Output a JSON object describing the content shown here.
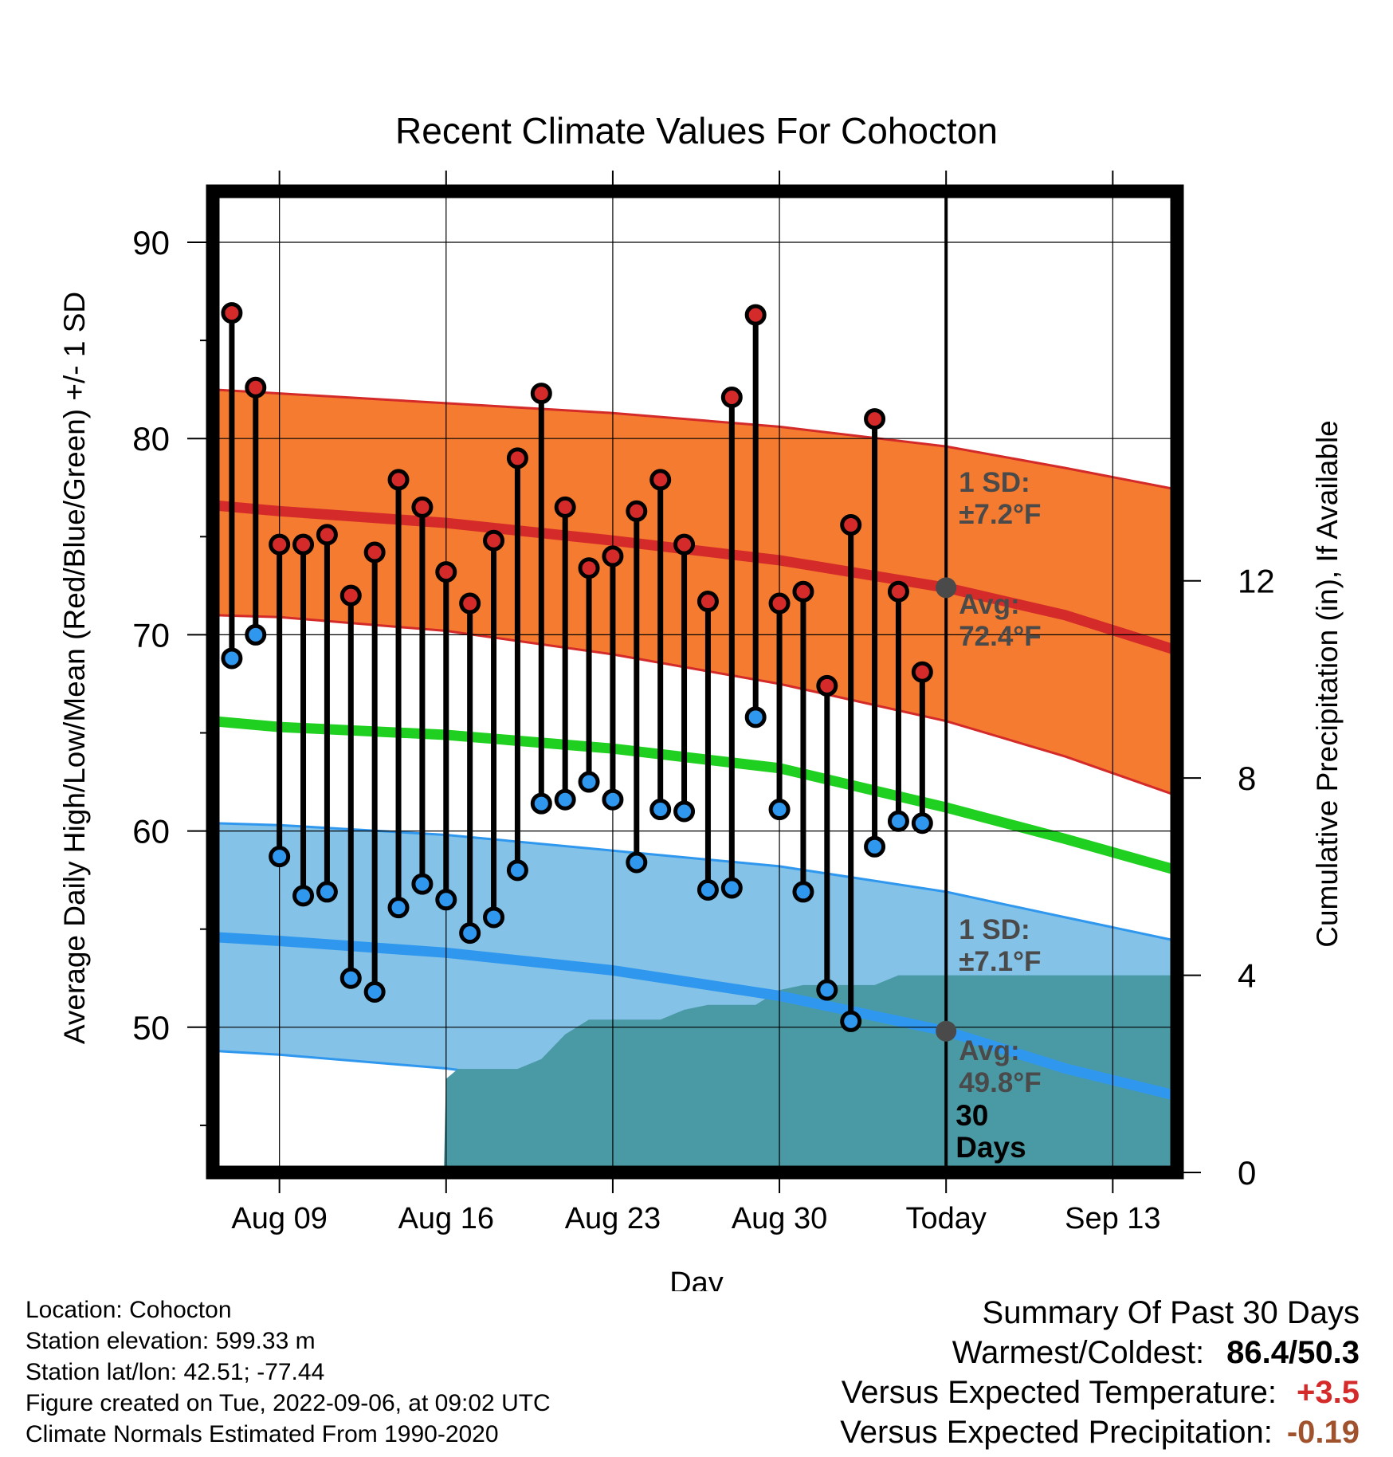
{
  "chart_data": {
    "type": "line",
    "title": "Recent Climate Values For Cohocton",
    "xlabel": "Day",
    "ylabel": "Average Daily High/Low/Mean (Red/Blue/Green) +/- 1 SD",
    "y2label": "Cumulative Precipitation (in), If Available",
    "ylim": [
      42.6,
      92.6
    ],
    "y2lim": [
      0,
      19.9
    ],
    "y_ticks": [
      90,
      80,
      70,
      60,
      50
    ],
    "y2_ticks": [
      12,
      8,
      4,
      0
    ],
    "x_ticks": [
      {
        "label": "Aug 09",
        "day": 9
      },
      {
        "label": "Aug 16",
        "day": 16
      },
      {
        "label": "Aug 23",
        "day": 23
      },
      {
        "label": "Aug 30",
        "day": 30
      },
      {
        "label": "Today",
        "day": 37
      },
      {
        "label": "Sep 13",
        "day": 44
      }
    ],
    "xlim": [
      6.2,
      46.7
    ],
    "today_day": 37,
    "daily_high": {
      "name": "High",
      "color": "#d42a2a",
      "days": [
        7,
        8,
        9,
        10,
        11,
        12,
        13,
        14,
        15,
        16,
        17,
        18,
        19,
        20,
        21,
        22,
        23,
        24,
        25,
        26,
        27,
        28,
        29,
        30,
        31,
        32,
        33,
        34,
        35,
        36
      ],
      "values": [
        86.4,
        82.6,
        74.6,
        74.6,
        75.1,
        72.0,
        74.2,
        77.9,
        76.5,
        73.2,
        71.6,
        74.8,
        79.0,
        82.3,
        76.5,
        73.4,
        74.0,
        76.3,
        77.9,
        74.6,
        71.7,
        82.1,
        86.3,
        71.6,
        72.2,
        67.4,
        75.6,
        81.0,
        72.2,
        68.1
      ]
    },
    "daily_low": {
      "name": "Low",
      "color": "#2f98ee",
      "days": [
        7,
        8,
        9,
        10,
        11,
        12,
        13,
        14,
        15,
        16,
        17,
        18,
        19,
        20,
        21,
        22,
        23,
        24,
        25,
        26,
        27,
        28,
        29,
        30,
        31,
        32,
        33,
        34,
        35,
        36
      ],
      "values": [
        68.8,
        70.0,
        58.7,
        56.7,
        56.9,
        52.5,
        51.8,
        56.1,
        57.3,
        56.5,
        54.8,
        55.6,
        58.0,
        61.4,
        61.6,
        62.5,
        61.6,
        58.4,
        61.1,
        61.0,
        57.0,
        57.1,
        65.8,
        61.1,
        56.9,
        51.9,
        50.3,
        59.2,
        60.5,
        60.4
      ]
    },
    "normal_high": {
      "color": "#d42a2a",
      "band_color": "#f47b2f",
      "days": [
        6.2,
        9,
        16,
        23,
        30,
        37,
        42,
        46.7
      ],
      "mean": [
        76.6,
        76.3,
        75.7,
        74.8,
        73.8,
        72.4,
        71.0,
        69.2
      ],
      "upper": [
        82.5,
        82.3,
        81.8,
        81.3,
        80.6,
        79.6,
        78.5,
        77.4
      ],
      "lower": [
        71.0,
        70.9,
        70.2,
        69.0,
        67.5,
        65.6,
        63.8,
        61.8
      ]
    },
    "normal_mean": {
      "color": "#20d020",
      "days": [
        6.2,
        9,
        16,
        23,
        30,
        37,
        42,
        46.7
      ],
      "values": [
        65.6,
        65.3,
        64.9,
        64.2,
        63.2,
        61.2,
        59.6,
        58.0
      ]
    },
    "normal_low": {
      "color": "#2f98ee",
      "band_color": "#84c2e8",
      "days": [
        6.2,
        9,
        16,
        23,
        30,
        37,
        42,
        46.7
      ],
      "mean": [
        54.6,
        54.4,
        53.8,
        52.9,
        51.6,
        49.8,
        47.9,
        46.5
      ],
      "upper": [
        60.4,
        60.3,
        59.8,
        59.0,
        58.2,
        56.9,
        55.6,
        54.4
      ],
      "lower": [
        48.8,
        48.6,
        47.9,
        46.8,
        45.3,
        43.7,
        42.6,
        42.6
      ]
    },
    "precip": {
      "color": "#4a9aa5",
      "days": [
        6.2,
        15,
        15.9,
        16,
        16.5,
        17,
        18,
        19,
        20,
        21,
        22,
        23,
        24,
        25,
        26,
        27,
        28,
        29,
        30,
        31,
        32,
        33,
        34,
        35,
        36,
        37,
        46.7
      ],
      "values": [
        0,
        0,
        0,
        1.9,
        2.1,
        2.1,
        2.1,
        2.1,
        2.3,
        2.8,
        3.1,
        3.1,
        3.1,
        3.1,
        3.3,
        3.4,
        3.4,
        3.4,
        3.7,
        3.8,
        3.8,
        3.8,
        3.8,
        4.0,
        4.0,
        4.0,
        4.0
      ]
    },
    "annotations": {
      "high_sd": {
        "line1": "1 SD:",
        "line2": "±7.2°F"
      },
      "high_avg": {
        "line1": "Avg:",
        "line2": "72.4°F"
      },
      "low_sd": {
        "line1": "1 SD:",
        "line2": "±7.1°F"
      },
      "low_avg": {
        "line1": "Avg:",
        "line2": "49.8°F"
      },
      "days": {
        "line1": "30",
        "line2": "Days"
      }
    }
  },
  "footer": {
    "location": "Location: Cohocton",
    "elevation": "Station elevation: 599.33 m",
    "latlon": "Station lat/lon: 42.51; -77.44",
    "created": "Figure created on Tue, 2022-09-06, at 09:02 UTC",
    "normals": "Climate Normals Estimated From 1990-2020"
  },
  "summary": {
    "heading": "Summary Of Past 30 Days",
    "warm_cold_label": "Warmest/Coldest:",
    "warm_cold_value": "86.4/50.3",
    "temp_label": "Versus Expected Temperature:",
    "temp_value": "+3.5",
    "temp_color": "#d42a2a",
    "precip_label": "Versus Expected Precipitation:",
    "precip_value": "-0.19",
    "precip_color": "#a0522d"
  }
}
